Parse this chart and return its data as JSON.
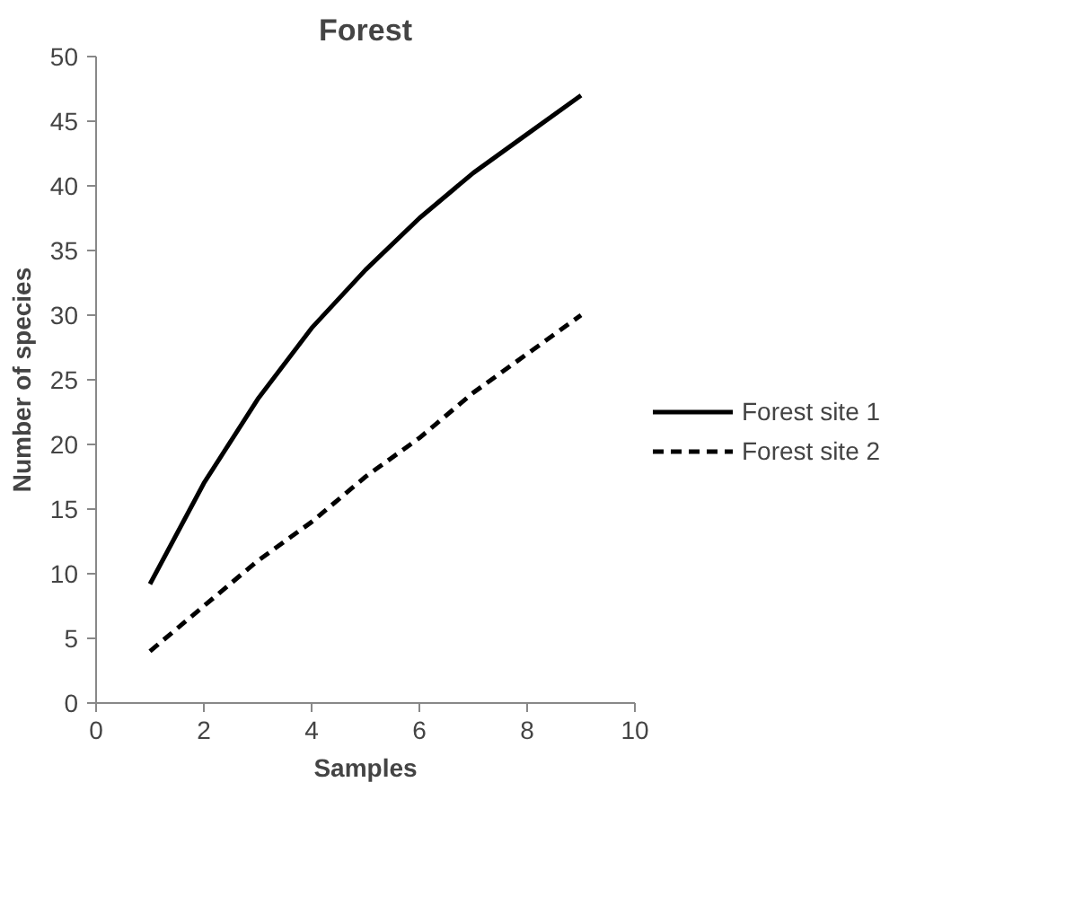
{
  "chart_data": {
    "type": "line",
    "title": "Forest",
    "xlabel": "Samples",
    "ylabel": "Number of species",
    "x": [
      1,
      2,
      3,
      4,
      5,
      6,
      7,
      8,
      9
    ],
    "series": [
      {
        "name": "Forest site 1",
        "color": "#000000",
        "line_style": "solid",
        "values": [
          9.2,
          17,
          23.5,
          29,
          33.5,
          37.5,
          41,
          44,
          47
        ]
      },
      {
        "name": "Forest site 2",
        "color": "#000000",
        "line_style": "dashed",
        "values": [
          4,
          7.5,
          11,
          14,
          17.5,
          20.5,
          24,
          27,
          30
        ]
      }
    ],
    "xlim": [
      0,
      10
    ],
    "xticks": [
      0,
      2,
      4,
      6,
      8,
      10
    ],
    "ylim": [
      0,
      50
    ],
    "yticks": [
      0,
      5,
      10,
      15,
      20,
      25,
      30,
      35,
      40,
      45,
      50
    ],
    "grid": false,
    "legend": "right",
    "marker": "none"
  }
}
